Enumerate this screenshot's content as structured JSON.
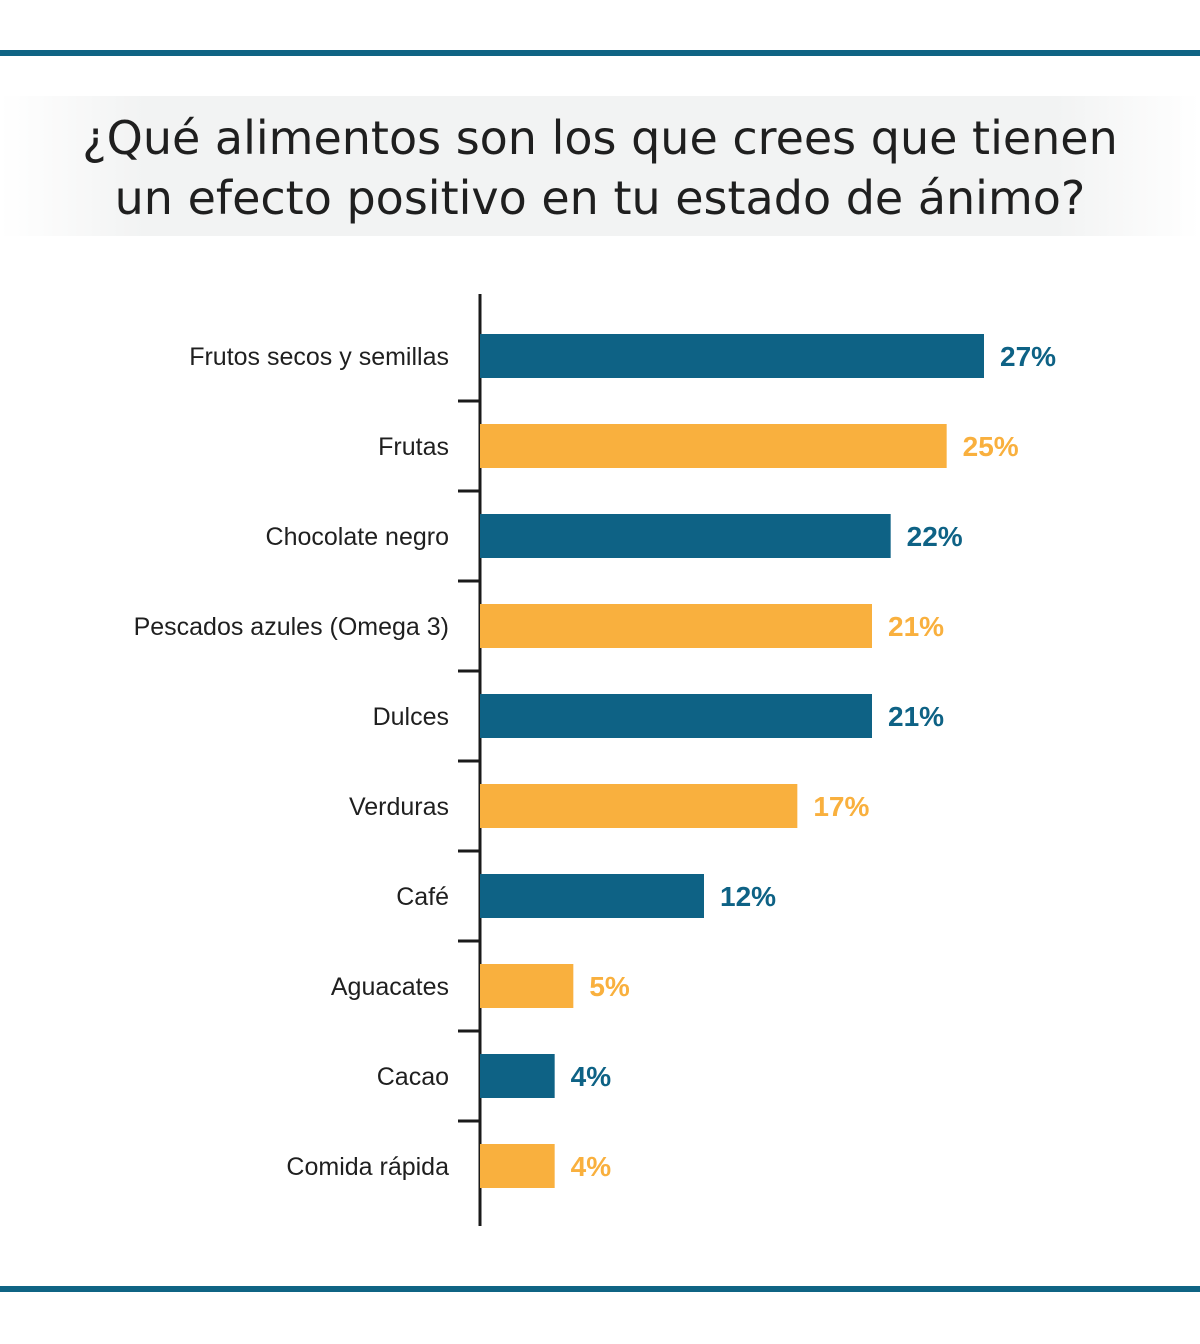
{
  "title_lines": [
    "¿Qué alimentos son los que crees que tienen",
    "un efecto positivo en tu estado de ánimo?"
  ],
  "colors": {
    "rule": "#0f6484",
    "blue": "#0e6285",
    "orange": "#f9b03e",
    "axis": "#1a1a1a",
    "text": "#1f1f1f"
  },
  "chart_data": {
    "type": "bar",
    "orientation": "horizontal",
    "categories": [
      "Frutos secos y semillas",
      "Frutas",
      "Chocolate negro",
      "Pescados azules (Omega 3)",
      "Dulces",
      "Verduras",
      "Café",
      "Aguacates",
      "Cacao",
      "Comida rápida"
    ],
    "values": [
      27,
      25,
      22,
      21,
      21,
      17,
      12,
      5,
      4,
      4
    ],
    "value_labels": [
      "27%",
      "25%",
      "22%",
      "21%",
      "21%",
      "17%",
      "12%",
      "5%",
      "4%",
      "4%"
    ],
    "bar_colors": [
      "blue",
      "orange",
      "blue",
      "orange",
      "blue",
      "orange",
      "blue",
      "orange",
      "blue",
      "orange"
    ],
    "xlim": [
      0,
      30
    ],
    "grid": false,
    "legend": "none"
  }
}
